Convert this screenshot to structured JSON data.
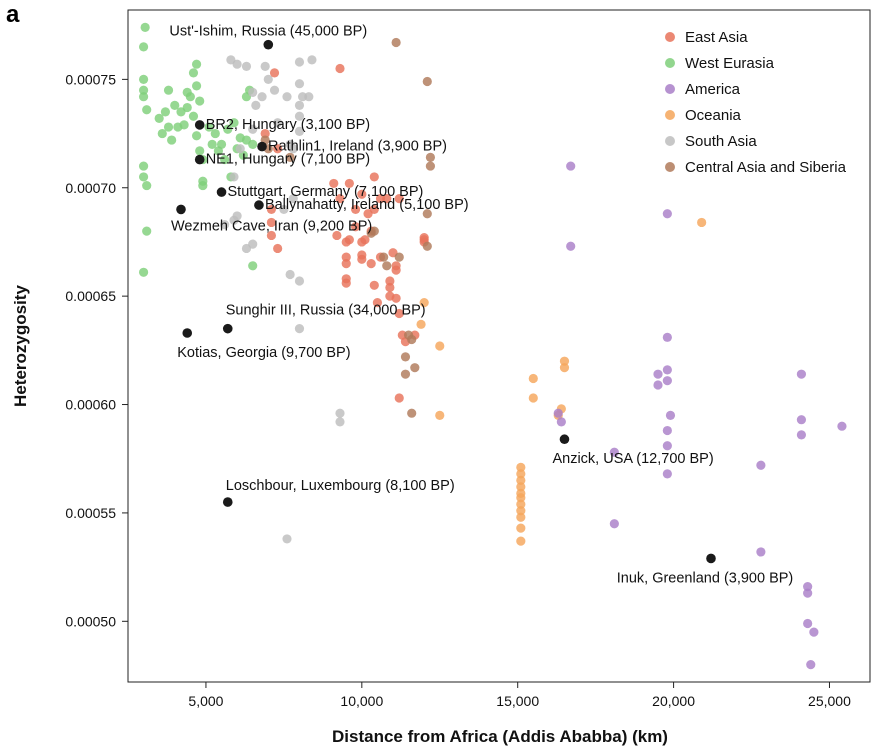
{
  "figure": {
    "panel_letter": "a"
  },
  "colors": {
    "East Asia": "#e8735a",
    "West Eurasia": "#7fcf7a",
    "America": "#a97fc8",
    "Oceania": "#f5a65b",
    "South Asia": "#bdbdbd",
    "Central Asia and Siberia": "#b07a5a",
    "ancient": "#1a1a1a"
  },
  "chart_data": {
    "type": "scatter",
    "xlabel": "Distance from Africa (Addis Ababba) (km)",
    "ylabel": "Heterozygosity",
    "xlim": [
      2500,
      26300
    ],
    "ylim": [
      0.000472,
      0.000782
    ],
    "xticks": [
      5000,
      10000,
      15000,
      20000,
      25000
    ],
    "xtick_labels": [
      "5,000",
      "10,000",
      "15,000",
      "20,000",
      "25,000"
    ],
    "yticks": [
      0.0005,
      0.00055,
      0.0006,
      0.00065,
      0.0007,
      0.00075
    ],
    "ytick_labels": [
      "0.00050",
      "0.00055",
      "0.00060",
      "0.00065",
      "0.00070",
      "0.00075"
    ],
    "grid": false,
    "legend_position": "top-right",
    "legend": [
      "East Asia",
      "West Eurasia",
      "America",
      "Oceania",
      "South Asia",
      "Central Asia and Siberia"
    ],
    "series": [
      {
        "name": "West Eurasia",
        "points": [
          [
            3050,
            0.000774
          ],
          [
            3000,
            0.000765
          ],
          [
            3000,
            0.00075
          ],
          [
            3000,
            0.000745
          ],
          [
            3000,
            0.000742
          ],
          [
            3100,
            0.000736
          ],
          [
            3000,
            0.00071
          ],
          [
            3000,
            0.000705
          ],
          [
            3100,
            0.000701
          ],
          [
            3100,
            0.00068
          ],
          [
            3000,
            0.000661
          ],
          [
            3500,
            0.000732
          ],
          [
            3600,
            0.000725
          ],
          [
            3700,
            0.000735
          ],
          [
            3800,
            0.000728
          ],
          [
            3900,
            0.000722
          ],
          [
            3800,
            0.000745
          ],
          [
            4000,
            0.000738
          ],
          [
            4100,
            0.000728
          ],
          [
            4200,
            0.000735
          ],
          [
            4300,
            0.000729
          ],
          [
            4400,
            0.000737
          ],
          [
            4500,
            0.000742
          ],
          [
            4600,
            0.000733
          ],
          [
            4700,
            0.000757
          ],
          [
            4700,
            0.000747
          ],
          [
            4800,
            0.00074
          ],
          [
            4700,
            0.000724
          ],
          [
            4800,
            0.000717
          ],
          [
            4900,
            0.000713
          ],
          [
            4900,
            0.000703
          ],
          [
            4900,
            0.000701
          ],
          [
            5100,
            0.000728
          ],
          [
            5200,
            0.00072
          ],
          [
            5300,
            0.000725
          ],
          [
            5400,
            0.000717
          ],
          [
            5500,
            0.00072
          ],
          [
            5600,
            0.000713
          ],
          [
            5800,
            0.000705
          ],
          [
            5700,
            0.000727
          ],
          [
            5900,
            0.00073
          ],
          [
            6000,
            0.000718
          ],
          [
            6100,
            0.000723
          ],
          [
            6200,
            0.000715
          ],
          [
            6300,
            0.000722
          ],
          [
            6400,
            0.000745
          ],
          [
            6500,
            0.00072
          ],
          [
            6500,
            0.000664
          ],
          [
            6300,
            0.000742
          ],
          [
            4600,
            0.000753
          ],
          [
            4400,
            0.000744
          ]
        ]
      },
      {
        "name": "South Asia",
        "points": [
          [
            5800,
            0.000759
          ],
          [
            6000,
            0.000757
          ],
          [
            6300,
            0.000756
          ],
          [
            6500,
            0.000744
          ],
          [
            6600,
            0.000738
          ],
          [
            6800,
            0.000742
          ],
          [
            6900,
            0.000756
          ],
          [
            7000,
            0.00075
          ],
          [
            7200,
            0.000745
          ],
          [
            7300,
            0.00073
          ],
          [
            7600,
            0.000742
          ],
          [
            7700,
            0.00072
          ],
          [
            8000,
            0.000758
          ],
          [
            8000,
            0.000748
          ],
          [
            8100,
            0.000742
          ],
          [
            8000,
            0.000738
          ],
          [
            8000,
            0.000733
          ],
          [
            8400,
            0.000759
          ],
          [
            8300,
            0.000742
          ],
          [
            8000,
            0.000726
          ],
          [
            7800,
            0.000718
          ],
          [
            6500,
            0.000727
          ],
          [
            6100,
            0.000718
          ],
          [
            5900,
            0.000705
          ],
          [
            6000,
            0.000687
          ],
          [
            5900,
            0.000685
          ],
          [
            6300,
            0.000672
          ],
          [
            7700,
            0.00066
          ],
          [
            8000,
            0.000657
          ],
          [
            8000,
            0.000635
          ],
          [
            7800,
            0.000695
          ],
          [
            7500,
            0.00069
          ],
          [
            9300,
            0.000596
          ],
          [
            9300,
            0.000592
          ],
          [
            7600,
            0.000538
          ],
          [
            6500,
            0.000674
          ],
          [
            5600,
            0.000683
          ]
        ]
      },
      {
        "name": "East Asia",
        "points": [
          [
            7200,
            0.000753
          ],
          [
            9300,
            0.000755
          ],
          [
            6900,
            0.000725
          ],
          [
            7300,
            0.000718
          ],
          [
            7100,
            0.00069
          ],
          [
            7300,
            0.000672
          ],
          [
            7100,
            0.000678
          ],
          [
            9100,
            0.000702
          ],
          [
            9300,
            0.000695
          ],
          [
            9600,
            0.000702
          ],
          [
            9800,
            0.00069
          ],
          [
            10000,
            0.000697
          ],
          [
            10200,
            0.000688
          ],
          [
            10400,
            0.000705
          ],
          [
            10600,
            0.000695
          ],
          [
            10800,
            0.000695
          ],
          [
            9800,
            0.000682
          ],
          [
            10000,
            0.000675
          ],
          [
            10300,
            0.00068
          ],
          [
            9200,
            0.000678
          ],
          [
            9500,
            0.000675
          ],
          [
            9500,
            0.000668
          ],
          [
            9500,
            0.000665
          ],
          [
            10000,
            0.000669
          ],
          [
            10000,
            0.000667
          ],
          [
            10300,
            0.000665
          ],
          [
            10600,
            0.000668
          ],
          [
            11000,
            0.00067
          ],
          [
            11100,
            0.000664
          ],
          [
            11100,
            0.000662
          ],
          [
            10900,
            0.000657
          ],
          [
            10400,
            0.000655
          ],
          [
            10500,
            0.000647
          ],
          [
            10900,
            0.000654
          ],
          [
            10900,
            0.00065
          ],
          [
            11100,
            0.000649
          ],
          [
            11200,
            0.000642
          ],
          [
            9500,
            0.000658
          ],
          [
            9500,
            0.000656
          ],
          [
            11300,
            0.000632
          ],
          [
            11400,
            0.000629
          ],
          [
            11700,
            0.000632
          ],
          [
            12000,
            0.000677
          ],
          [
            12000,
            0.000675
          ],
          [
            11200,
            0.000603
          ],
          [
            9600,
            0.000676
          ],
          [
            10100,
            0.000676
          ],
          [
            12000,
            0.000676
          ],
          [
            7100,
            0.000684
          ],
          [
            10400,
            0.00069
          ],
          [
            11200,
            0.000695
          ]
        ]
      },
      {
        "name": "Central Asia and Siberia",
        "points": [
          [
            11100,
            0.000767
          ],
          [
            12100,
            0.000749
          ],
          [
            6900,
            0.000722
          ],
          [
            7000,
            0.000718
          ],
          [
            7700,
            0.000714
          ],
          [
            12200,
            0.000714
          ],
          [
            12200,
            0.00071
          ],
          [
            12100,
            0.000688
          ],
          [
            10700,
            0.000668
          ],
          [
            10800,
            0.000664
          ],
          [
            11200,
            0.000668
          ],
          [
            12100,
            0.000673
          ],
          [
            11500,
            0.000632
          ],
          [
            11600,
            0.00063
          ],
          [
            11400,
            0.000622
          ],
          [
            11700,
            0.000617
          ],
          [
            11400,
            0.000614
          ],
          [
            11600,
            0.000596
          ],
          [
            10300,
            0.000679
          ],
          [
            10400,
            0.00068
          ]
        ]
      },
      {
        "name": "Oceania",
        "points": [
          [
            12000,
            0.000647
          ],
          [
            11900,
            0.000637
          ],
          [
            12500,
            0.000627
          ],
          [
            15500,
            0.000612
          ],
          [
            15500,
            0.000603
          ],
          [
            16500,
            0.00062
          ],
          [
            16500,
            0.000617
          ],
          [
            12500,
            0.000595
          ],
          [
            15100,
            0.000571
          ],
          [
            15100,
            0.000568
          ],
          [
            15100,
            0.000565
          ],
          [
            15100,
            0.000562
          ],
          [
            15100,
            0.000559
          ],
          [
            15100,
            0.000557
          ],
          [
            15100,
            0.000554
          ],
          [
            15100,
            0.000551
          ],
          [
            15100,
            0.000548
          ],
          [
            15100,
            0.000543
          ],
          [
            15100,
            0.000537
          ],
          [
            20900,
            0.000684
          ],
          [
            16400,
            0.000598
          ],
          [
            16300,
            0.000595
          ]
        ]
      },
      {
        "name": "America",
        "points": [
          [
            16700,
            0.00071
          ],
          [
            16700,
            0.000673
          ],
          [
            19800,
            0.000688
          ],
          [
            19800,
            0.000631
          ],
          [
            16300,
            0.000596
          ],
          [
            16400,
            0.000592
          ],
          [
            19500,
            0.000614
          ],
          [
            19800,
            0.000616
          ],
          [
            19500,
            0.000609
          ],
          [
            19800,
            0.000611
          ],
          [
            19900,
            0.000595
          ],
          [
            19800,
            0.000588
          ],
          [
            19800,
            0.000581
          ],
          [
            19800,
            0.000568
          ],
          [
            18100,
            0.000578
          ],
          [
            18100,
            0.000545
          ],
          [
            22800,
            0.000572
          ],
          [
            22800,
            0.000532
          ],
          [
            24100,
            0.000614
          ],
          [
            24100,
            0.000593
          ],
          [
            24100,
            0.000586
          ],
          [
            25400,
            0.00059
          ],
          [
            24300,
            0.000516
          ],
          [
            24300,
            0.000513
          ],
          [
            24300,
            0.000499
          ],
          [
            24500,
            0.000495
          ],
          [
            24400,
            0.00048
          ]
        ]
      }
    ],
    "ancient_samples": [
      {
        "label": "Ust'-Ishim, Russia (45,000 BP)",
        "x": 7000,
        "y": 0.000766
      },
      {
        "label": "BR2, Hungary (3,100 BP)",
        "x": 4800,
        "y": 0.000729
      },
      {
        "label": "Rathlin1, Ireland (3,900 BP)",
        "x": 6800,
        "y": 0.000719
      },
      {
        "label": "NE1, Hungary (7,100 BP)",
        "x": 4800,
        "y": 0.000713
      },
      {
        "label": "Stuttgart, Germany (7,100 BP)",
        "x": 5500,
        "y": 0.000698
      },
      {
        "label": "Ballynahatty, Ireland (5,100 BP)",
        "x": 6700,
        "y": 0.000692
      },
      {
        "label": "Wezmeh Cave, Iran (9,200 BP)",
        "x": 4200,
        "y": 0.00069
      },
      {
        "label": "Sunghir III, Russia (34,000 BP)",
        "x": 5700,
        "y": 0.000635
      },
      {
        "label": "Kotias, Georgia (9,700 BP)",
        "x": 4400,
        "y": 0.000633
      },
      {
        "label": "Anzick, USA (12,700 BP)",
        "x": 16500,
        "y": 0.000584
      },
      {
        "label": "Loschbour, Luxembourg (8,100 BP)",
        "x": 5700,
        "y": 0.000555
      },
      {
        "label": "Inuk, Greenland (3,900 BP)",
        "x": 21200,
        "y": 0.000529
      }
    ]
  }
}
